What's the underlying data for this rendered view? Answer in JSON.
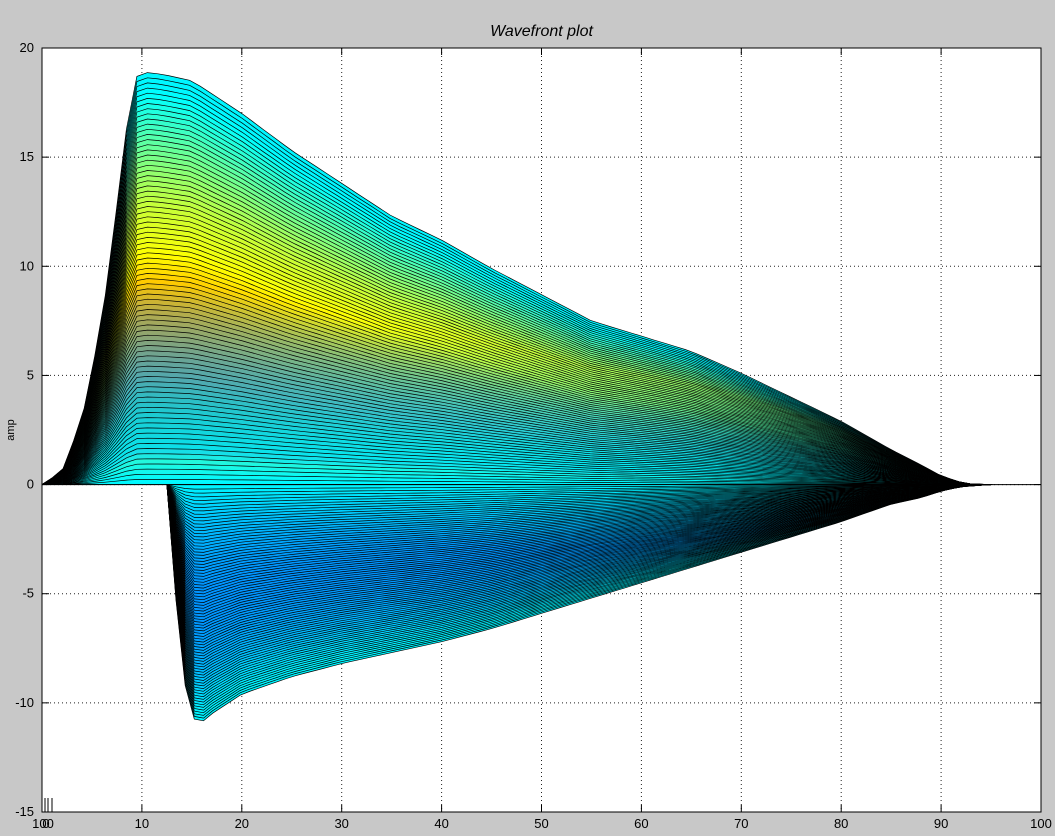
{
  "window": {
    "background": "#c8c8c8",
    "plot_background": "#ffffff"
  },
  "chart_data": {
    "type": "area",
    "title": "Wavefront plot",
    "xlabel": "",
    "ylabel": "amp",
    "xlim": [
      0,
      100
    ],
    "ylim": [
      -15,
      20
    ],
    "x_ticks": [
      10,
      20,
      30,
      40,
      50,
      60,
      70,
      80,
      90,
      100
    ],
    "x_tick_labels": [
      "10",
      "20",
      "30",
      "40",
      "50",
      "60",
      "70",
      "80",
      "90",
      "100"
    ],
    "y_ticks": [
      -15,
      -10,
      -5,
      0,
      5,
      10,
      15,
      20
    ],
    "y_tick_labels": [
      "-15",
      "-10",
      "-5",
      "0",
      "5",
      "10",
      "15",
      "20"
    ],
    "origin_tick_labels": [
      "100",
      "0"
    ],
    "grid": true,
    "grid_style": "dotted",
    "colormap": "jet",
    "colormap_range": [
      -11,
      19
    ],
    "slice_count": 80,
    "upper_envelope": {
      "x": [
        0,
        2,
        4,
        6,
        8,
        9,
        10,
        12,
        15,
        20,
        25,
        30,
        35,
        40,
        45,
        50,
        55,
        60,
        65,
        70,
        75,
        80,
        85,
        88,
        90,
        92,
        93,
        95
      ],
      "y": [
        0,
        0.6,
        3.0,
        7.5,
        14.5,
        18.5,
        18.9,
        18.8,
        18.5,
        17.0,
        15.3,
        13.8,
        12.3,
        11.2,
        9.9,
        8.7,
        7.5,
        6.8,
        6.1,
        5.1,
        4.0,
        2.9,
        1.6,
        0.9,
        0.4,
        0.1,
        0.03,
        0
      ]
    },
    "lower_envelope": {
      "x": [
        12.5,
        13,
        14,
        15,
        15.7,
        17,
        20,
        25,
        30,
        35,
        40,
        45,
        50,
        55,
        60,
        65,
        70,
        75,
        80,
        85,
        88,
        90,
        92,
        95
      ],
      "y": [
        0,
        -3.0,
        -8.5,
        -10.6,
        -11.0,
        -10.5,
        -9.6,
        -8.8,
        -8.2,
        -7.7,
        -7.2,
        -6.6,
        -5.9,
        -5.2,
        -4.5,
        -3.8,
        -3.1,
        -2.4,
        -1.7,
        -0.9,
        -0.6,
        -0.3,
        -0.1,
        0
      ]
    }
  }
}
